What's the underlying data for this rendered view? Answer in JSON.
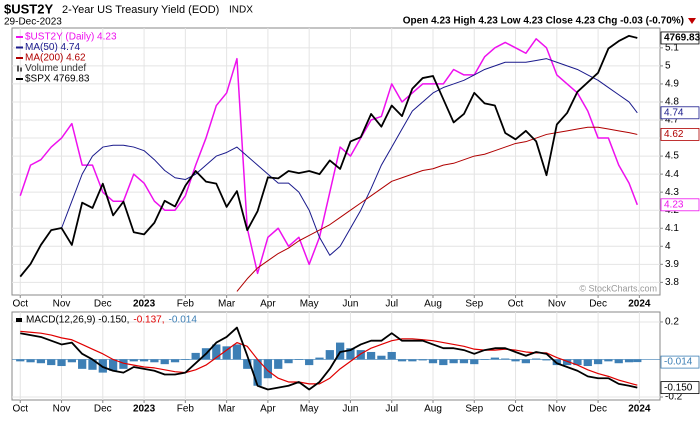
{
  "chart_data": [
    {
      "type": "line",
      "title": "$UST2Y",
      "subtitle": "2-Year US Treasury Yield (EOD)",
      "exchange": "INDX",
      "date": "29-Dec-2023",
      "quote": "Open 4.23 High 4.23 Low 4.23 Close 4.23 Chg -0.03 (-0.70%)",
      "credit": "© StockCharts.com",
      "legend_note": "Volume undef",
      "legend": "upper left",
      "grid": true,
      "x": [
        0,
        0.25,
        0.5,
        0.75,
        1,
        1.25,
        1.5,
        1.75,
        2,
        2.25,
        2.5,
        2.75,
        3,
        3.25,
        3.5,
        3.75,
        4,
        4.25,
        4.5,
        4.75,
        5,
        5.25,
        5.5,
        5.75,
        6,
        6.25,
        6.5,
        6.75,
        7,
        7.25,
        7.5,
        7.75,
        8,
        8.25,
        8.5,
        8.75,
        9,
        9.25,
        9.5,
        9.75,
        10,
        10.25,
        10.5,
        10.75,
        11,
        11.25,
        11.5,
        11.75,
        12,
        12.25,
        12.5,
        12.75,
        13,
        13.25,
        13.5,
        13.75,
        14,
        14.25,
        14.5,
        14.75,
        14.95
      ],
      "xlim": [
        -0.2,
        15.5
      ],
      "xticks": [
        {
          "value": 0,
          "label": "Oct"
        },
        {
          "value": 1,
          "label": "Nov"
        },
        {
          "value": 2,
          "label": "Dec"
        },
        {
          "value": 3,
          "label": "2023"
        },
        {
          "value": 4,
          "label": "Feb"
        },
        {
          "value": 5,
          "label": "Mar"
        },
        {
          "value": 6,
          "label": "Apr"
        },
        {
          "value": 7,
          "label": "May"
        },
        {
          "value": 8,
          "label": "Jun"
        },
        {
          "value": 9,
          "label": "Jul"
        },
        {
          "value": 10,
          "label": "Aug"
        },
        {
          "value": 11,
          "label": "Sep"
        },
        {
          "value": 12,
          "label": "Oct"
        },
        {
          "value": 13,
          "label": "Nov"
        },
        {
          "value": 14,
          "label": "Dec"
        },
        {
          "value": 15,
          "label": "2024"
        }
      ],
      "ylim": [
        3.73,
        5.21
      ],
      "yticks": [
        3.8,
        3.9,
        4.0,
        4.1,
        4.2,
        4.3,
        4.4,
        4.5,
        4.6,
        4.7,
        4.8,
        4.9,
        5.0,
        5.1
      ],
      "y2lim": [
        3553,
        4817
      ],
      "series": [
        {
          "name": "$UST2Y (Daily) 4.23",
          "color": "#ee11ee",
          "width": 1.5,
          "values": [
            4.28,
            4.45,
            4.48,
            4.55,
            4.6,
            4.68,
            4.45,
            4.45,
            4.3,
            4.25,
            4.25,
            4.4,
            4.35,
            4.25,
            4.2,
            4.2,
            4.28,
            4.45,
            4.6,
            4.78,
            4.85,
            5.04,
            4.1,
            3.85,
            4.05,
            4.1,
            4.0,
            4.05,
            3.9,
            4.05,
            4.3,
            4.55,
            4.5,
            4.6,
            4.7,
            4.72,
            4.9,
            4.8,
            4.85,
            4.9,
            4.9,
            4.9,
            4.98,
            4.95,
            4.95,
            5.05,
            5.1,
            5.13,
            5.1,
            5.07,
            5.15,
            5.1,
            4.95,
            4.9,
            4.85,
            4.75,
            4.6,
            4.6,
            4.45,
            4.35,
            4.23
          ]
        },
        {
          "name": "MA(50) 4.74",
          "color": "#1a1a8c",
          "width": 1,
          "values": [
            null,
            null,
            null,
            null,
            4.1,
            4.25,
            4.4,
            4.5,
            4.55,
            4.56,
            4.56,
            4.55,
            4.53,
            4.48,
            4.42,
            4.38,
            4.37,
            4.4,
            4.45,
            4.5,
            4.52,
            4.55,
            4.5,
            4.45,
            4.4,
            4.35,
            4.35,
            4.3,
            4.2,
            4.05,
            3.95,
            4.0,
            4.1,
            4.2,
            4.32,
            4.45,
            4.55,
            4.65,
            4.75,
            4.8,
            4.85,
            4.88,
            4.9,
            4.92,
            4.95,
            4.98,
            5.0,
            5.02,
            5.02,
            5.02,
            5.03,
            5.04,
            5.02,
            5.0,
            4.98,
            4.95,
            4.92,
            4.88,
            4.84,
            4.8,
            4.74
          ]
        },
        {
          "name": "MA(200) 4.62",
          "color": "#b00000",
          "width": 1,
          "values": [
            null,
            null,
            null,
            null,
            null,
            null,
            null,
            null,
            null,
            null,
            null,
            null,
            null,
            null,
            null,
            null,
            null,
            null,
            null,
            null,
            null,
            3.75,
            3.82,
            3.88,
            3.92,
            3.96,
            3.99,
            4.03,
            4.06,
            4.09,
            4.12,
            4.16,
            4.2,
            4.24,
            4.28,
            4.32,
            4.36,
            4.38,
            4.4,
            4.42,
            4.43,
            4.45,
            4.46,
            4.48,
            4.5,
            4.51,
            4.53,
            4.55,
            4.57,
            4.58,
            4.6,
            4.62,
            4.63,
            4.64,
            4.65,
            4.66,
            4.66,
            4.65,
            4.64,
            4.63,
            4.62
          ]
        },
        {
          "name": "$SPX 4769.83",
          "color": "#000000",
          "width": 1.8,
          "axis": "y2",
          "values": [
            3640,
            3700,
            3790,
            3860,
            3870,
            3790,
            3990,
            3965,
            4080,
            3930,
            3995,
            3850,
            3840,
            3895,
            3999,
            3972,
            4070,
            4140,
            4090,
            4080,
            3970,
            4045,
            3860,
            3950,
            4110,
            4105,
            4140,
            4130,
            4140,
            4125,
            4190,
            4150,
            4280,
            4300,
            4410,
            4350,
            4450,
            4400,
            4530,
            4580,
            4590,
            4480,
            4370,
            4410,
            4510,
            4460,
            4450,
            4320,
            4290,
            4330,
            4280,
            4120,
            4360,
            4415,
            4515,
            4560,
            4605,
            4720,
            4755,
            4780,
            4769.83
          ]
        }
      ],
      "markers": [
        {
          "value": 4769.83,
          "color": "#000000",
          "axis": "y2"
        },
        {
          "value": 4.74,
          "color": "#1a1a8c"
        },
        {
          "value": 4.62,
          "color": "#b00000"
        },
        {
          "value": 4.23,
          "color": "#ee11ee"
        }
      ]
    },
    {
      "type": "line",
      "grid": true,
      "legend": "upper left",
      "x": [
        0,
        0.25,
        0.5,
        0.75,
        1,
        1.25,
        1.5,
        1.75,
        2,
        2.25,
        2.5,
        2.75,
        3,
        3.25,
        3.5,
        3.75,
        4,
        4.25,
        4.5,
        4.75,
        5,
        5.25,
        5.5,
        5.75,
        6,
        6.25,
        6.5,
        6.75,
        7,
        7.25,
        7.5,
        7.75,
        8,
        8.25,
        8.5,
        8.75,
        9,
        9.25,
        9.5,
        9.75,
        10,
        10.25,
        10.5,
        10.75,
        11,
        11.25,
        11.5,
        11.75,
        12,
        12.25,
        12.5,
        12.75,
        13,
        13.25,
        13.5,
        13.75,
        14,
        14.25,
        14.5,
        14.75,
        14.95
      ],
      "xlim": [
        -0.2,
        15.5
      ],
      "xticks": [
        {
          "value": 0,
          "label": "Oct"
        },
        {
          "value": 1,
          "label": "Nov"
        },
        {
          "value": 2,
          "label": "Dec"
        },
        {
          "value": 3,
          "label": "2023"
        },
        {
          "value": 4,
          "label": "Feb"
        },
        {
          "value": 5,
          "label": "Mar"
        },
        {
          "value": 6,
          "label": "Apr"
        },
        {
          "value": 7,
          "label": "May"
        },
        {
          "value": 8,
          "label": "Jun"
        },
        {
          "value": 9,
          "label": "Jul"
        },
        {
          "value": 10,
          "label": "Aug"
        },
        {
          "value": 11,
          "label": "Sep"
        },
        {
          "value": 12,
          "label": "Oct"
        },
        {
          "value": 13,
          "label": "Nov"
        },
        {
          "value": 14,
          "label": "Dec"
        },
        {
          "value": 15,
          "label": "2024"
        }
      ],
      "ylim": [
        -0.216,
        0.253
      ],
      "yticks": [
        0.2,
        -0.2
      ],
      "series": [
        {
          "name": "-0.014",
          "color": "#3d7fb5",
          "type": "bar",
          "values": [
            -0.01,
            -0.015,
            -0.02,
            -0.03,
            -0.035,
            -0.015,
            -0.05,
            -0.055,
            -0.07,
            -0.06,
            -0.05,
            -0.01,
            -0.01,
            -0.015,
            -0.025,
            -0.015,
            0,
            0.035,
            0.06,
            0.08,
            0.07,
            0.08,
            -0.05,
            -0.14,
            -0.1,
            -0.05,
            -0.02,
            0,
            -0.03,
            0.01,
            0.05,
            0.09,
            0.06,
            0.05,
            0.04,
            0.02,
            0.04,
            -0.01,
            -0.01,
            -0.005,
            -0.02,
            -0.03,
            -0.02,
            -0.02,
            -0.025,
            0,
            0.01,
            0.005,
            -0.01,
            -0.02,
            0.005,
            -0.005,
            -0.03,
            -0.03,
            -0.03,
            -0.035,
            -0.025,
            -0.01,
            -0.02,
            -0.015,
            -0.014
          ]
        },
        {
          "name": "-0.137,",
          "color": "#e00000",
          "width": 1.2,
          "values": [
            0.15,
            0.145,
            0.14,
            0.13,
            0.115,
            0.105,
            0.08,
            0.055,
            0.03,
            0,
            -0.02,
            -0.03,
            -0.04,
            -0.045,
            -0.055,
            -0.065,
            -0.07,
            -0.055,
            -0.03,
            0.01,
            0.05,
            0.09,
            0.07,
            0,
            -0.06,
            -0.1,
            -0.12,
            -0.12,
            -0.13,
            -0.13,
            -0.1,
            -0.05,
            -0.01,
            0.03,
            0.06,
            0.08,
            0.1,
            0.11,
            0.11,
            0.105,
            0.1,
            0.09,
            0.08,
            0.07,
            0.055,
            0.05,
            0.05,
            0.055,
            0.05,
            0.04,
            0.035,
            0.035,
            0.01,
            -0.01,
            -0.03,
            -0.055,
            -0.075,
            -0.09,
            -0.11,
            -0.125,
            -0.137
          ]
        },
        {
          "name": "MACD(12,26,9) -0.150,",
          "color": "#000000",
          "width": 1.8,
          "values": [
            0.14,
            0.13,
            0.12,
            0.1,
            0.08,
            0.09,
            0.03,
            0,
            -0.04,
            -0.06,
            -0.07,
            -0.04,
            -0.05,
            -0.06,
            -0.08,
            -0.08,
            -0.07,
            -0.02,
            0.03,
            0.09,
            0.12,
            0.17,
            0.02,
            -0.14,
            -0.16,
            -0.15,
            -0.14,
            -0.12,
            -0.16,
            -0.12,
            -0.05,
            0.04,
            0.05,
            0.08,
            0.1,
            0.1,
            0.14,
            0.1,
            0.1,
            0.1,
            0.08,
            0.06,
            0.06,
            0.05,
            0.03,
            0.05,
            0.06,
            0.06,
            0.04,
            0.02,
            0.04,
            0.03,
            -0.02,
            -0.04,
            -0.06,
            -0.09,
            -0.1,
            -0.1,
            -0.13,
            -0.14,
            -0.15
          ]
        }
      ],
      "legend_order": [
        2,
        1,
        0
      ],
      "markers": [
        {
          "value": -0.014,
          "label": "-0.014",
          "color": "#3d7fb5"
        },
        {
          "value": -0.15,
          "label": "-0.150",
          "color": "#000000"
        }
      ]
    }
  ]
}
